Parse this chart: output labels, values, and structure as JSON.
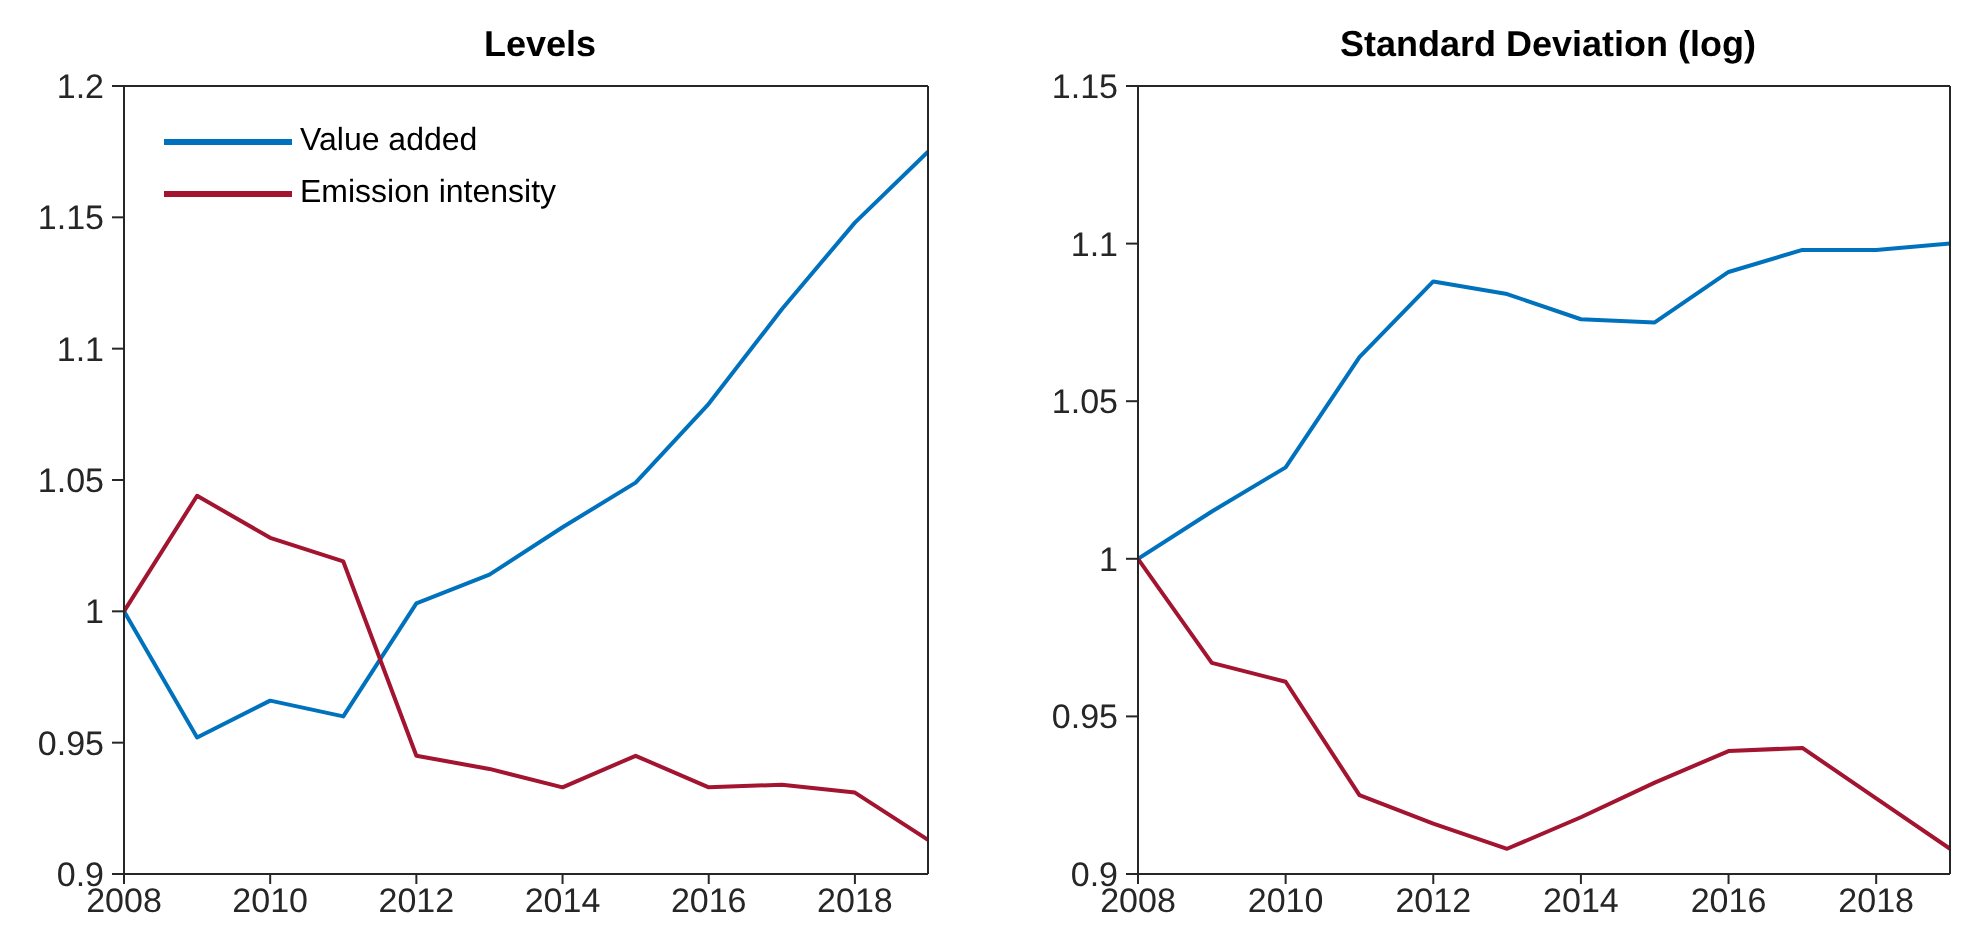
{
  "chart_data": [
    {
      "type": "line",
      "title": "Levels",
      "x": [
        2008,
        2009,
        2010,
        2011,
        2012,
        2013,
        2014,
        2015,
        2016,
        2017,
        2018,
        2019
      ],
      "series": [
        {
          "name": "Value added",
          "color": "#0072bd",
          "values": [
            1.0,
            0.952,
            0.966,
            0.96,
            1.003,
            1.014,
            1.032,
            1.049,
            1.079,
            1.115,
            1.148,
            1.175
          ]
        },
        {
          "name": "Emission intensity",
          "color": "#a2142f",
          "values": [
            1.0,
            1.044,
            1.028,
            1.019,
            0.945,
            0.94,
            0.933,
            0.945,
            0.933,
            0.934,
            0.931,
            0.913
          ]
        }
      ],
      "xlim": [
        2008,
        2019
      ],
      "xticks": [
        2008,
        2010,
        2012,
        2014,
        2016,
        2018
      ],
      "ylim": [
        0.9,
        1.2
      ],
      "yticks": [
        0.9,
        0.95,
        1,
        1.05,
        1.1,
        1.15,
        1.2
      ],
      "legend": "top left",
      "grid": false
    },
    {
      "type": "line",
      "title": "Standard Deviation (log)",
      "x": [
        2008,
        2009,
        2010,
        2011,
        2012,
        2013,
        2014,
        2015,
        2016,
        2017,
        2018,
        2019
      ],
      "series": [
        {
          "color": "#0072bd",
          "values": [
            1.0,
            1.015,
            1.029,
            1.064,
            1.088,
            1.084,
            1.076,
            1.075,
            1.091,
            1.098,
            1.098,
            1.1
          ]
        },
        {
          "color": "#a2142f",
          "values": [
            1.0,
            0.967,
            0.961,
            0.925,
            0.916,
            0.908,
            0.918,
            0.929,
            0.939,
            0.94,
            0.924,
            0.908
          ]
        }
      ],
      "xlim": [
        2008,
        2019
      ],
      "xticks": [
        2008,
        2010,
        2012,
        2014,
        2016,
        2018
      ],
      "ylim": [
        0.9,
        1.15
      ],
      "yticks": [
        0.9,
        0.95,
        1,
        1.05,
        1.1,
        1.15
      ],
      "legend": false,
      "grid": false
    }
  ]
}
